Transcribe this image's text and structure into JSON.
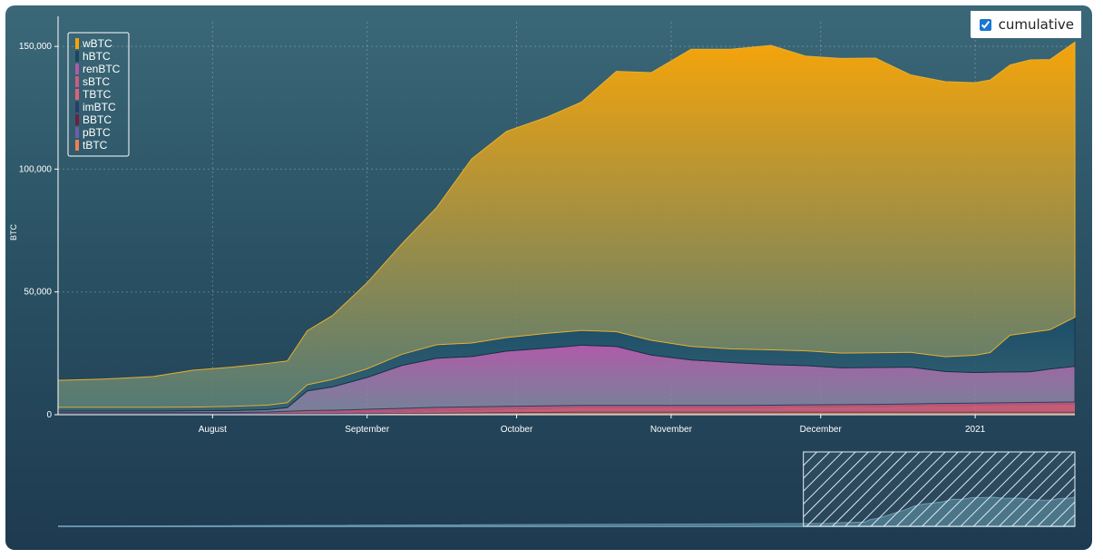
{
  "toggle": {
    "label": "cumulative",
    "checked": true
  },
  "chart_data": {
    "type": "area",
    "stacked": true,
    "ylabel": "BTC",
    "ylim": [
      0,
      160000
    ],
    "yticks": [
      0,
      50000,
      100000,
      150000
    ],
    "ytick_labels": [
      "0",
      "50,000",
      "100,000",
      "150,000"
    ],
    "xlim": [
      "2020-07-01",
      "2021-01-21"
    ],
    "xticks": [
      "2020-08-01",
      "2020-09-01",
      "2020-10-01",
      "2020-11-01",
      "2020-12-01",
      "2021-01-01"
    ],
    "xtick_labels": [
      "August",
      "September",
      "October",
      "November",
      "December",
      "2021"
    ],
    "grid": true,
    "legend_position": "top-left",
    "x": [
      "2020-07-01",
      "2020-07-10",
      "2020-07-20",
      "2020-07-28",
      "2020-08-05",
      "2020-08-12",
      "2020-08-16",
      "2020-08-20",
      "2020-08-25",
      "2020-09-01",
      "2020-09-08",
      "2020-09-15",
      "2020-09-22",
      "2020-09-29",
      "2020-10-07",
      "2020-10-14",
      "2020-10-21",
      "2020-10-28",
      "2020-11-05",
      "2020-11-13",
      "2020-11-21",
      "2020-11-28",
      "2020-12-05",
      "2020-12-12",
      "2020-12-19",
      "2020-12-26",
      "2021-01-01",
      "2021-01-04",
      "2021-01-08",
      "2021-01-12",
      "2021-01-16",
      "2021-01-21"
    ],
    "series": [
      {
        "name": "tBTC",
        "color": "#f08050",
        "values": [
          200,
          200,
          200,
          200,
          200,
          200,
          200,
          200,
          200,
          300,
          400,
          500,
          600,
          700,
          800,
          900,
          900,
          900,
          900,
          900,
          900,
          900,
          900,
          900,
          900,
          900,
          900,
          900,
          900,
          900,
          900,
          900
        ]
      },
      {
        "name": "pBTC",
        "color": "#6d5fa8",
        "values": [
          100,
          100,
          100,
          100,
          100,
          100,
          100,
          100,
          100,
          100,
          100,
          100,
          100,
          100,
          100,
          100,
          100,
          100,
          100,
          100,
          100,
          100,
          100,
          100,
          100,
          100,
          100,
          100,
          100,
          100,
          100,
          100
        ]
      },
      {
        "name": "BBTC",
        "color": "#6e2040",
        "values": [
          0,
          0,
          0,
          0,
          0,
          0,
          0,
          0,
          0,
          0,
          0,
          0,
          0,
          0,
          0,
          0,
          0,
          0,
          0,
          0,
          0,
          0,
          0,
          0,
          0,
          0,
          0,
          0,
          0,
          0,
          0,
          0
        ]
      },
      {
        "name": "imBTC",
        "color": "#253e6a",
        "values": [
          200,
          200,
          200,
          200,
          200,
          200,
          200,
          200,
          200,
          200,
          200,
          200,
          200,
          200,
          200,
          200,
          200,
          200,
          200,
          200,
          200,
          200,
          200,
          200,
          200,
          200,
          200,
          200,
          200,
          200,
          200,
          200
        ]
      },
      {
        "name": "TBTC",
        "color": "#e0607e",
        "values": [
          100,
          100,
          100,
          100,
          100,
          100,
          100,
          100,
          100,
          300,
          500,
          800,
          1000,
          1200,
          1400,
          1600,
          1600,
          1600,
          1600,
          1600,
          1700,
          1800,
          1900,
          2000,
          2200,
          2400,
          2500,
          2600,
          2700,
          2800,
          2900,
          3000
        ]
      },
      {
        "name": "sBTC",
        "color": "#d05a80",
        "values": [
          300,
          300,
          300,
          300,
          300,
          500,
          800,
          1100,
          1200,
          1300,
          1400,
          1400,
          1300,
          1200,
          1100,
          1000,
          1000,
          1000,
          1000,
          1000,
          1000,
          1000,
          1000,
          1000,
          1000,
          1000,
          1000,
          1000,
          1000,
          1000,
          1000,
          1000
        ]
      },
      {
        "name": "renBTC",
        "color": "#b05aa8",
        "values": [
          600,
          600,
          600,
          700,
          800,
          1000,
          1500,
          8000,
          9500,
          13000,
          17500,
          20000,
          20500,
          22500,
          23500,
          24500,
          24000,
          20500,
          18500,
          17500,
          16500,
          16000,
          15000,
          15000,
          15000,
          13000,
          12500,
          12500,
          12500,
          12500,
          13500,
          14500
        ]
      },
      {
        "name": "hBTC",
        "color": "#1a4560",
        "values": [
          1500,
          1500,
          1500,
          1500,
          1700,
          1800,
          2000,
          2500,
          3000,
          3500,
          4500,
          5500,
          5500,
          5500,
          6000,
          6000,
          6000,
          6000,
          5500,
          5500,
          6000,
          6000,
          6000,
          6000,
          6000,
          6000,
          7000,
          8000,
          15000,
          16000,
          16000,
          20000
        ]
      },
      {
        "name": "wBTC",
        "color": "#f5a40a",
        "values": [
          11000,
          11500,
          12500,
          15000,
          16000,
          17000,
          17000,
          22000,
          26000,
          35000,
          45000,
          56000,
          75000,
          84000,
          88000,
          93000,
          106000,
          109000,
          121000,
          122000,
          124000,
          120000,
          120000,
          120000,
          113000,
          112000,
          111000,
          111000,
          110000,
          111000,
          110000,
          112000
        ]
      }
    ],
    "navigator": {
      "brush_start": "2020-07-01",
      "brush_end": "2021-01-21"
    }
  }
}
